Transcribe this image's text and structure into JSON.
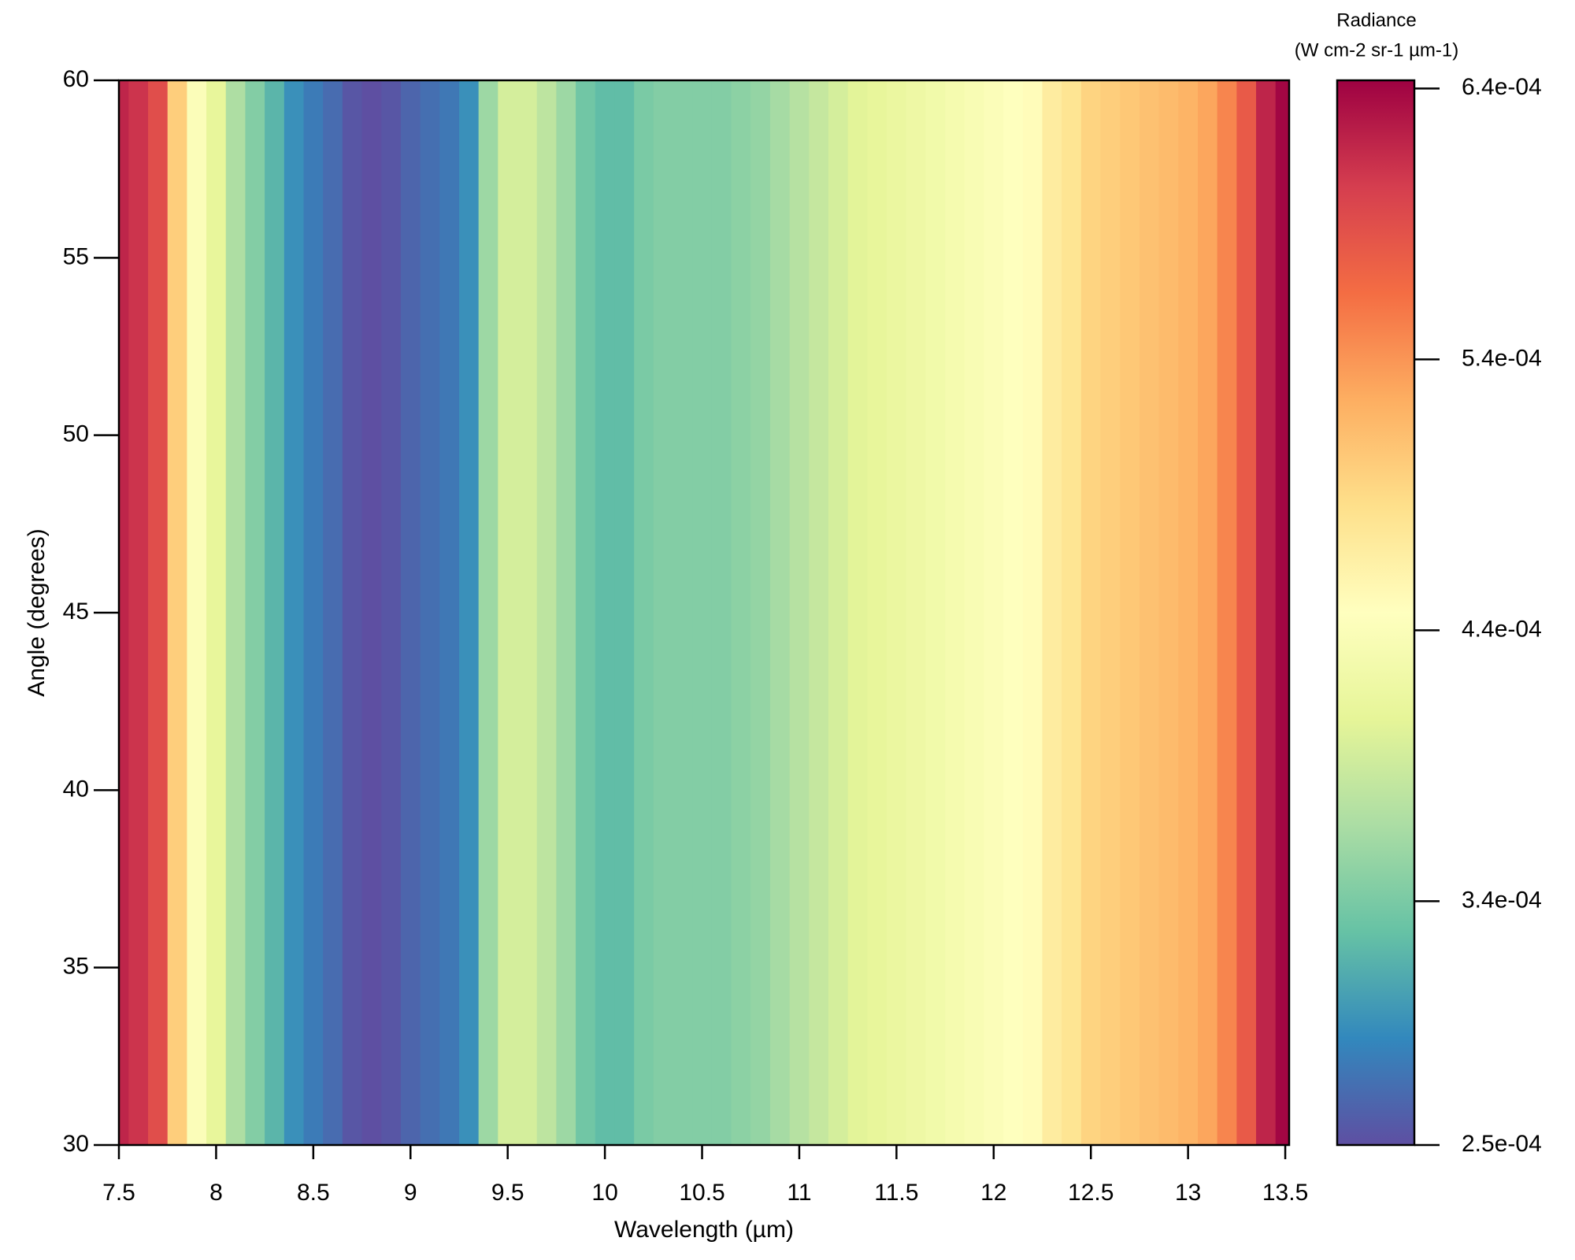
{
  "chart_data": {
    "type": "heatmap",
    "xlabel": "Wavelength (µm)",
    "ylabel": "Angle (degrees)",
    "colorbar_label": [
      "Radiance",
      "(W cm-2 sr-1  µm-1)"
    ],
    "x": [
      7.5,
      7.6,
      7.7,
      7.8,
      7.9,
      8.0,
      8.1,
      8.2,
      8.3,
      8.4,
      8.5,
      8.6,
      8.7,
      8.8,
      8.9,
      9.0,
      9.1,
      9.2,
      9.3,
      9.4,
      9.5,
      9.6,
      9.7,
      9.8,
      9.9,
      10.0,
      10.1,
      10.2,
      10.3,
      10.4,
      10.5,
      10.6,
      10.7,
      10.8,
      10.9,
      11.0,
      11.1,
      11.2,
      11.3,
      11.4,
      11.5,
      11.6,
      11.7,
      11.8,
      11.9,
      12.0,
      12.1,
      12.2,
      12.3,
      12.4,
      12.5,
      12.6,
      12.7,
      12.8,
      12.9,
      13.0,
      13.1,
      13.2,
      13.3,
      13.4,
      13.5
    ],
    "values": [
      0.00062,
      0.00061,
      0.00059,
      0.0005,
      0.00044,
      0.00041,
      0.00037,
      0.000345,
      0.00032,
      0.000295,
      0.00028,
      0.00027,
      0.000255,
      0.00025,
      0.000255,
      0.000265,
      0.000272,
      0.000278,
      0.000295,
      0.00036,
      0.000395,
      0.000395,
      0.00038,
      0.00036,
      0.000335,
      0.000325,
      0.000325,
      0.00034,
      0.000345,
      0.000345,
      0.000345,
      0.000345,
      0.00035,
      0.000355,
      0.000365,
      0.000375,
      0.000385,
      0.000395,
      0.000405,
      0.00041,
      0.000415,
      0.00042,
      0.000425,
      0.00043,
      0.000435,
      0.00044,
      0.000445,
      0.00045,
      0.00047,
      0.00048,
      0.000495,
      0.0005,
      0.000505,
      0.00051,
      0.000515,
      0.00052,
      0.00053,
      0.00055,
      0.00058,
      0.00062,
      0.00064
    ],
    "xlim": [
      7.5,
      13.52
    ],
    "xticks": [
      7.5,
      8,
      8.5,
      9,
      9.5,
      10,
      10.5,
      11,
      11.5,
      12,
      12.5,
      13,
      13.5
    ],
    "ylim": [
      30,
      60
    ],
    "yticks": [
      30,
      35,
      40,
      45,
      50,
      55,
      60
    ],
    "clim": [
      0.00025,
      0.000643
    ],
    "cticks": [
      {
        "value": 0.00025,
        "label": "2.5e-04"
      },
      {
        "value": 0.00034,
        "label": "3.4e-04"
      },
      {
        "value": 0.00044,
        "label": "4.4e-04"
      },
      {
        "value": 0.00054,
        "label": "5.4e-04"
      },
      {
        "value": 0.00064,
        "label": "6.4e-04"
      }
    ],
    "colorscale": [
      "#5e4fa2",
      "#3288bd",
      "#66c2a5",
      "#abdda4",
      "#e6f598",
      "#ffffbf",
      "#fee08b",
      "#fdae61",
      "#f46d43",
      "#d53e4f",
      "#9e0142"
    ]
  }
}
